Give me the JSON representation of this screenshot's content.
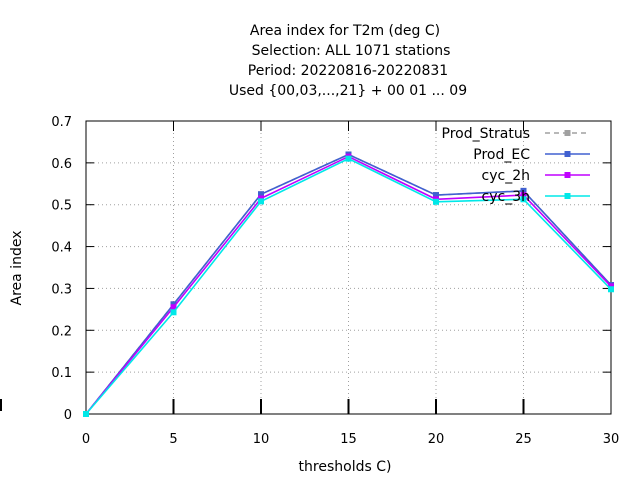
{
  "chart_data": {
    "type": "line",
    "title_lines": [
      "Area index  for T2m (deg C)",
      "Selection: ALL    1071 stations",
      "Period: 20220816-20220831",
      "Used {00,03,...,21} + 00 01 ... 09"
    ],
    "xlabel": "thresholds C)",
    "ylabel": "Area index",
    "x": [
      0,
      5,
      10,
      15,
      20,
      25,
      30
    ],
    "xlim": [
      0,
      30
    ],
    "ylim": [
      0,
      0.7
    ],
    "xticks": [
      0,
      5,
      10,
      15,
      20,
      25,
      30
    ],
    "yticks": [
      0,
      0.1,
      0.2,
      0.3,
      0.4,
      0.5,
      0.6,
      0.7
    ],
    "grid": true,
    "legend_position": "top-right",
    "series": [
      {
        "name": "Prod_Stratus",
        "color": "#a0a0a0",
        "dashed": true,
        "values": [
          0.0,
          0.262,
          0.525,
          0.62,
          0.523,
          0.533,
          0.308
        ]
      },
      {
        "name": "Prod_EC",
        "color": "#4060d0",
        "dashed": false,
        "values": [
          0.0,
          0.262,
          0.525,
          0.62,
          0.523,
          0.533,
          0.308
        ]
      },
      {
        "name": "cyc_2h",
        "color": "#c000ff",
        "dashed": false,
        "values": [
          0.0,
          0.255,
          0.515,
          0.615,
          0.513,
          0.523,
          0.305
        ]
      },
      {
        "name": "cyc_3h",
        "color": "#00e8e8",
        "dashed": false,
        "values": [
          0.0,
          0.243,
          0.508,
          0.61,
          0.507,
          0.513,
          0.298
        ]
      }
    ]
  }
}
